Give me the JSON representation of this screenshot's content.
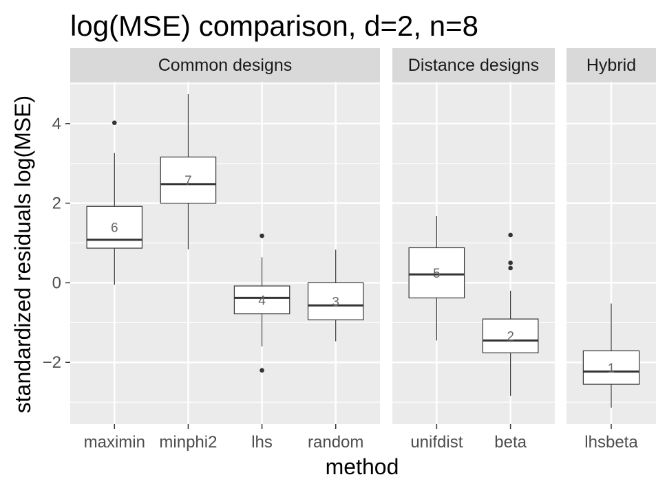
{
  "chart_data": {
    "type": "boxplot",
    "title": "log(MSE) comparison, d=2, n=8",
    "xlabel": "method",
    "ylabel": "standardized residuals log(MSE)",
    "ylim": [
      -3.55,
      5.05
    ],
    "yticks": [
      -2,
      0,
      2,
      4
    ],
    "ytick_labels": [
      "−2",
      "0",
      "2",
      "4"
    ],
    "grid": true,
    "facets": [
      {
        "label": "Common designs",
        "methods": [
          {
            "name": "maximin",
            "rank": "6",
            "q1": 0.87,
            "median": 1.08,
            "q3": 1.92,
            "whisker_low": -0.05,
            "whisker_high": 3.26,
            "outliers": [
              4.02
            ]
          },
          {
            "name": "minphi2",
            "rank": "7",
            "q1": 2.0,
            "median": 2.48,
            "q3": 3.16,
            "whisker_low": 0.84,
            "whisker_high": 4.74,
            "outliers": []
          },
          {
            "name": "lhs",
            "rank": "4",
            "q1": -0.78,
            "median": -0.38,
            "q3": -0.08,
            "whisker_low": -1.6,
            "whisker_high": 0.64,
            "outliers": [
              1.18,
              -2.2
            ]
          },
          {
            "name": "random",
            "rank": "3",
            "q1": -0.93,
            "median": -0.57,
            "q3": 0.0,
            "whisker_low": -1.47,
            "whisker_high": 0.83,
            "outliers": []
          }
        ]
      },
      {
        "label": "Distance designs",
        "methods": [
          {
            "name": "unifdist",
            "rank": "5",
            "q1": -0.38,
            "median": 0.21,
            "q3": 0.88,
            "whisker_low": -1.45,
            "whisker_high": 1.68,
            "outliers": []
          },
          {
            "name": "beta",
            "rank": "2",
            "q1": -1.76,
            "median": -1.45,
            "q3": -0.91,
            "whisker_low": -2.84,
            "whisker_high": -0.2,
            "outliers": [
              1.2,
              0.5,
              0.37
            ]
          }
        ]
      },
      {
        "label": "Hybrid",
        "methods": [
          {
            "name": "lhsbeta",
            "rank": "1",
            "q1": -2.55,
            "median": -2.23,
            "q3": -1.71,
            "whisker_low": -3.14,
            "whisker_high": -0.52,
            "outliers": []
          }
        ]
      }
    ]
  }
}
